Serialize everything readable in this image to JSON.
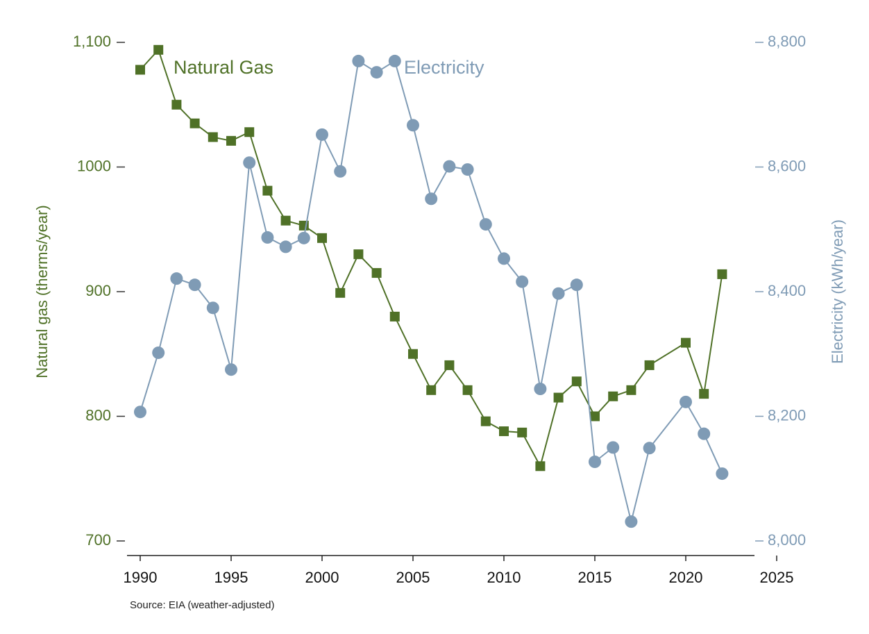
{
  "chart_data": {
    "type": "line",
    "x": [
      1990,
      1991,
      1992,
      1993,
      1994,
      1995,
      1996,
      1997,
      1998,
      1999,
      2000,
      2001,
      2002,
      2003,
      2004,
      2005,
      2006,
      2007,
      2008,
      2009,
      2010,
      2011,
      2012,
      2013,
      2014,
      2015,
      2016,
      2017,
      2018,
      2020,
      2021,
      2022
    ],
    "series": [
      {
        "name": "Natural Gas",
        "color": "#4f7127",
        "marker": "square",
        "axis": "y",
        "values": [
          1078,
          1094,
          1050,
          1035,
          1024,
          1021,
          1028,
          981,
          957,
          953,
          943,
          899,
          930,
          915,
          880,
          850,
          821,
          841,
          821,
          796,
          788,
          787,
          760,
          815,
          828,
          800,
          816,
          821,
          841,
          859,
          818,
          914
        ]
      },
      {
        "name": "Electricity",
        "color": "#7f9bb5",
        "marker": "circle",
        "axis": "y2",
        "values": [
          8207,
          8302,
          8421,
          8411,
          8374,
          8275,
          8607,
          8487,
          8472,
          8486,
          8652,
          8593,
          8770,
          8752,
          8770,
          8667,
          8549,
          8601,
          8596,
          8508,
          8453,
          8416,
          8244,
          8397,
          8411,
          8127,
          8150,
          8031,
          8149,
          8223,
          8172,
          8108
        ]
      }
    ],
    "xlim": [
      1990,
      2025
    ],
    "xticks": [
      1990,
      1995,
      2000,
      2005,
      2010,
      2015,
      2020,
      2025
    ],
    "ylim": [
      700,
      1100
    ],
    "yticks": [
      700,
      800,
      900,
      1000,
      {
        "value": 1100,
        "label": "1,100"
      }
    ],
    "y2lim": [
      8000,
      8800
    ],
    "y2ticks": [
      {
        "value": 8000,
        "label": "8,000"
      },
      {
        "value": 8200,
        "label": "8,200"
      },
      {
        "value": 8400,
        "label": "8,400"
      },
      {
        "value": 8600,
        "label": "8,600"
      },
      {
        "value": 8800,
        "label": "8,800"
      }
    ],
    "ylabel": "Natural gas (therms/year)",
    "y2label": "Electricity (kWh/year)",
    "source": "Source: EIA (weather-adjusted)"
  }
}
